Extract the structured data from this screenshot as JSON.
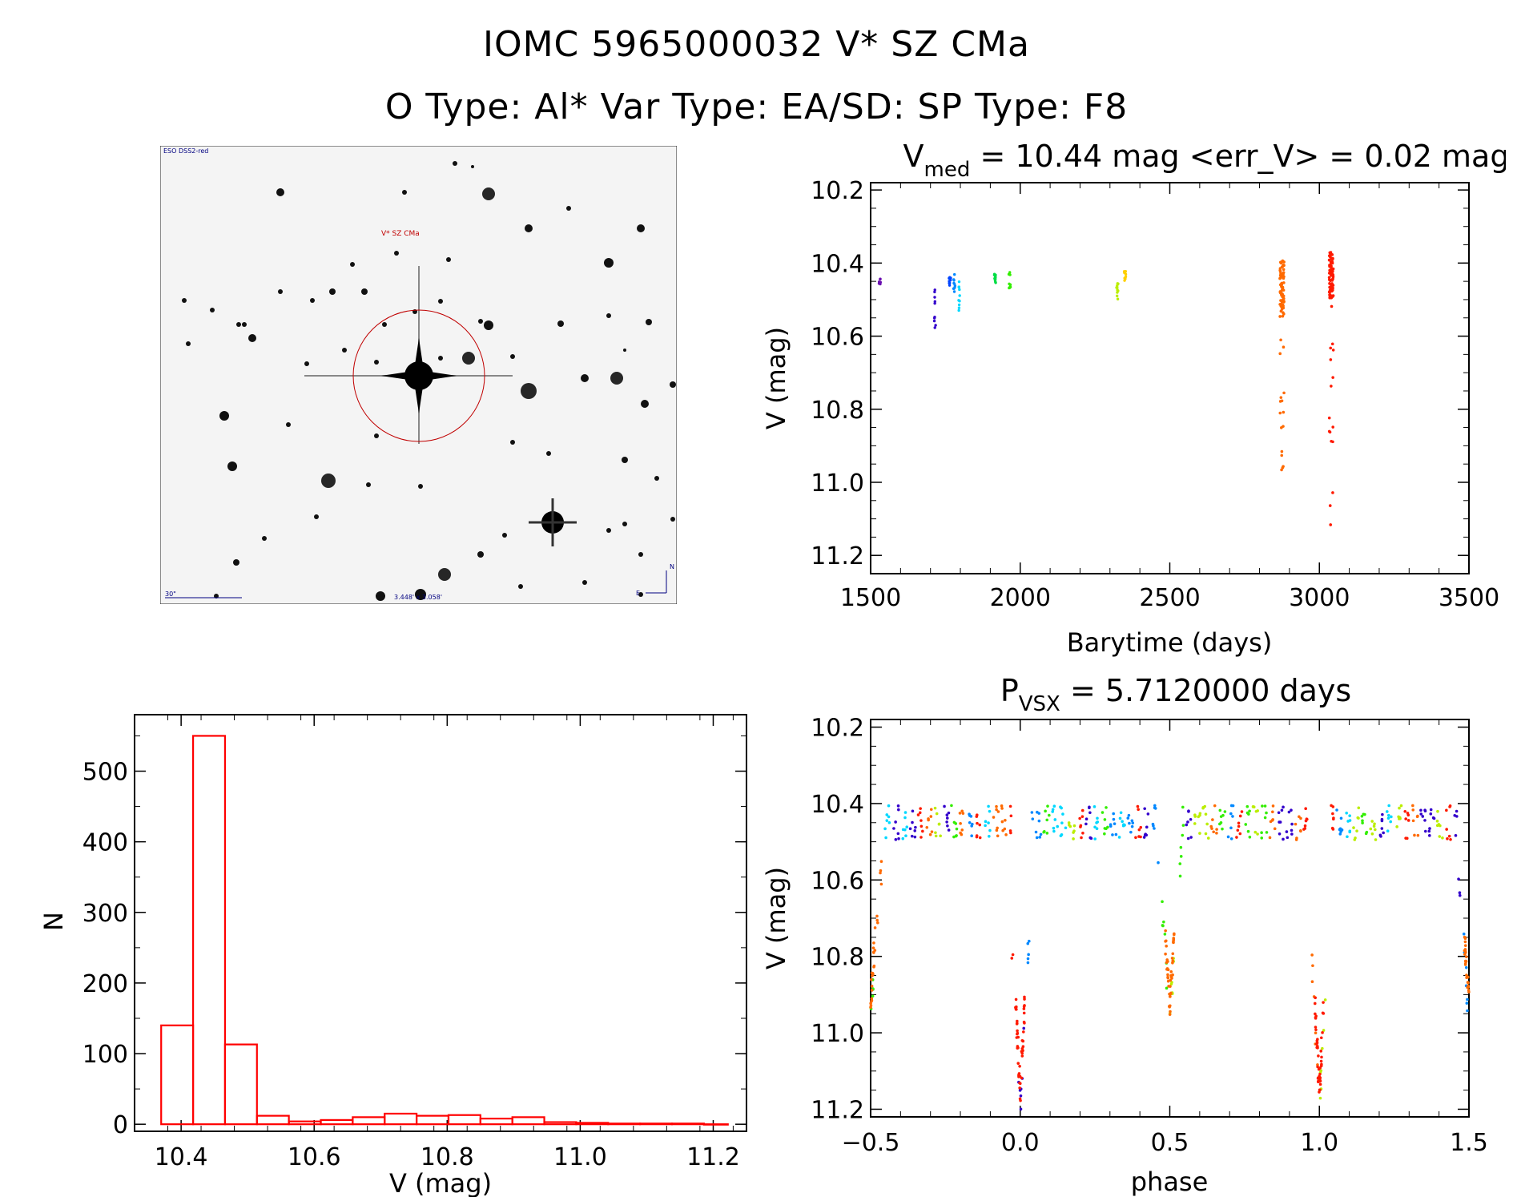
{
  "header": {
    "title_line1": "IOMC 5965000032    V* SZ CMa",
    "title_line2": "O Type: Al*  Var Type: EA/SD:  SP Type: F8"
  },
  "sky_image": {
    "survey_label": "ESO DSS2-red",
    "target_label": "V* SZ CMa",
    "scale_label": "30\"",
    "fov_label": "3.448' x 3.058'",
    "compass_north": "N",
    "compass_east": "E",
    "marker_color": "#c00000"
  },
  "chart_data": [
    {
      "id": "light_curve",
      "type": "scatter",
      "title_main": "V",
      "title_sub": "med",
      "title_rest": " = 10.44 mag <err_V> = 0.02 mag",
      "xlabel": "Barytime (days)",
      "ylabel": "V (mag)",
      "xlim": [
        1500,
        3500
      ],
      "ylim": [
        11.25,
        10.18
      ],
      "y_inverted": true,
      "xticks": [
        1500,
        2000,
        2500,
        3000,
        3500
      ],
      "xtick_labels": [
        "1500",
        "2000",
        "2500",
        "3000",
        "3500"
      ],
      "yticks": [
        10.2,
        10.4,
        10.6,
        10.8,
        11.0,
        11.2
      ],
      "ytick_labels": [
        "10.2",
        "10.4",
        "10.6",
        "10.8",
        "11.0",
        "11.2"
      ],
      "groups": [
        {
          "x": 1530,
          "y": [
            10.44,
            10.46
          ],
          "color": "#6a0fb0"
        },
        {
          "x": 1715,
          "y": [
            10.46,
            10.58
          ],
          "color": "#3300cc"
        },
        {
          "x": 1765,
          "y": [
            10.42,
            10.47
          ],
          "color": "#0044ff"
        },
        {
          "x": 1780,
          "y": [
            10.43,
            10.49
          ],
          "color": "#0088ff"
        },
        {
          "x": 1795,
          "y": [
            10.45,
            10.53
          ],
          "color": "#00d8ff"
        },
        {
          "x": 1915,
          "y": [
            10.43,
            10.46
          ],
          "color": "#00dd44"
        },
        {
          "x": 1965,
          "y": [
            10.4,
            10.5
          ],
          "color": "#33ee00"
        },
        {
          "x": 2325,
          "y": [
            10.45,
            10.5
          ],
          "color": "#bbee00"
        },
        {
          "x": 2350,
          "y": [
            10.42,
            10.45
          ],
          "color": "#ffd000"
        },
        {
          "x": 2875,
          "y": [
            10.39,
            10.97
          ],
          "color": "#ff6a00",
          "dense": [
            10.39,
            10.55
          ]
        },
        {
          "x": 3040,
          "y": [
            10.37,
            11.19
          ],
          "color": "#ff1a00",
          "dense": [
            10.37,
            10.5
          ]
        }
      ]
    },
    {
      "id": "histogram",
      "type": "bar",
      "xlabel": "V (mag)",
      "ylabel": "N",
      "xlim": [
        10.33,
        11.25
      ],
      "ylim": [
        -10,
        580
      ],
      "xticks": [
        10.4,
        10.6,
        10.8,
        11.0,
        11.2
      ],
      "xtick_labels": [
        "10.4",
        "10.6",
        "10.8",
        "11.0",
        "11.2"
      ],
      "yticks": [
        0,
        100,
        200,
        300,
        400,
        500
      ],
      "ytick_labels": [
        "0",
        "100",
        "200",
        "300",
        "400",
        "500"
      ],
      "bin_edges": [
        10.37,
        10.418,
        10.466,
        10.514,
        10.562,
        10.61,
        10.658,
        10.706,
        10.754,
        10.802,
        10.85,
        10.898,
        10.946,
        10.994,
        11.042,
        11.09,
        11.138,
        11.186,
        11.222
      ],
      "values": [
        140,
        550,
        113,
        12,
        4,
        6,
        10,
        15,
        12,
        13,
        8,
        10,
        3,
        2,
        1,
        1,
        1,
        0
      ],
      "bar_color": "#ff0000"
    },
    {
      "id": "phased_curve",
      "type": "scatter",
      "title_main": "P",
      "title_sub": "VSX",
      "title_rest": " = 5.7120000 days",
      "xlabel": "phase",
      "ylabel": "V (mag)",
      "period_days": 5.712,
      "xlim": [
        -0.5,
        1.5
      ],
      "ylim": [
        11.22,
        10.18
      ],
      "y_inverted": true,
      "xticks": [
        -0.5,
        0.0,
        0.5,
        1.0,
        1.5
      ],
      "xtick_labels": [
        "−0.5",
        "0.0",
        "0.5",
        "1.0",
        "1.5"
      ],
      "yticks": [
        10.2,
        10.4,
        10.6,
        10.8,
        11.0,
        11.2
      ],
      "ytick_labels": [
        "10.2",
        "10.4",
        "10.6",
        "10.8",
        "11.0",
        "11.2"
      ],
      "baseline_mag": 10.45,
      "primary_eclipse": {
        "phase": 0.0,
        "min_mag": 11.19
      },
      "secondary_eclipse": {
        "phase": 0.5,
        "min_mag": 10.96
      },
      "colors": [
        "#ff6a00",
        "#ff1a00",
        "#3300cc",
        "#0088ff",
        "#00d8ff",
        "#33ee00",
        "#bbee00"
      ]
    }
  ]
}
